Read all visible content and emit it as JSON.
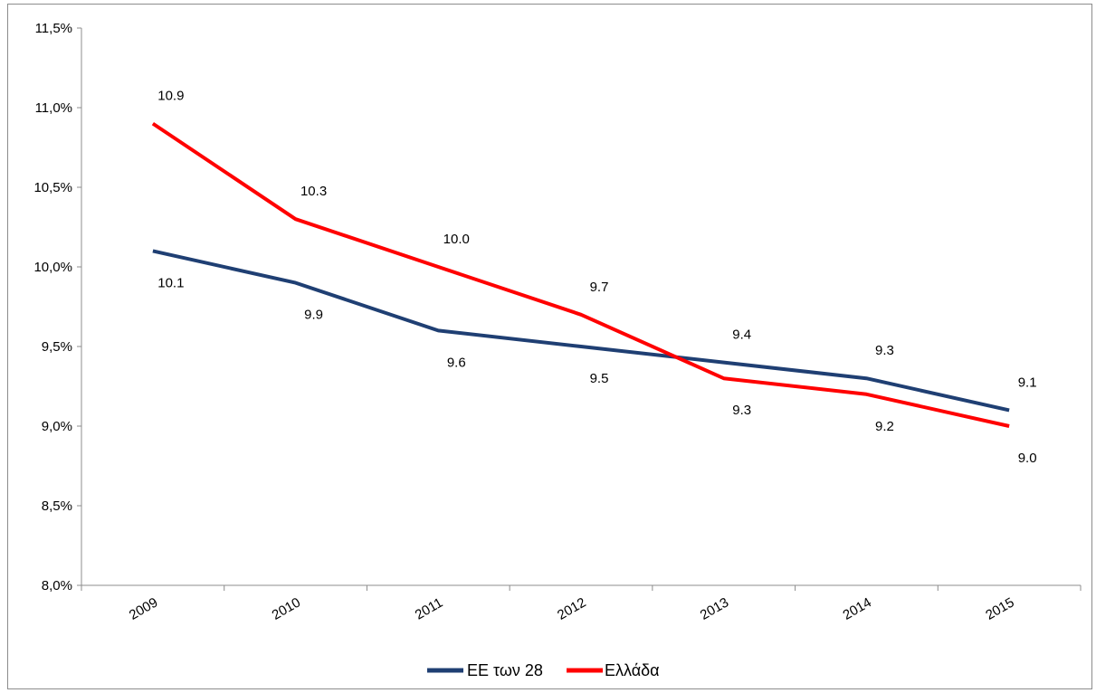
{
  "chart_data": {
    "type": "line",
    "categories": [
      "2009",
      "2010",
      "2011",
      "2012",
      "2013",
      "2014",
      "2015"
    ],
    "series": [
      {
        "name": "ΕΕ των 28",
        "color": "#1f3f73",
        "values": [
          10.1,
          9.9,
          9.6,
          9.5,
          9.4,
          9.3,
          9.1
        ],
        "data_labels": [
          "10.1",
          "9.9",
          "9.6",
          "9.5",
          "9.4",
          "9.3",
          "9.1"
        ]
      },
      {
        "name": "Ελλάδα",
        "color": "#ff0000",
        "values": [
          10.9,
          10.3,
          10.0,
          9.7,
          9.3,
          9.2,
          9.0
        ],
        "data_labels": [
          "10.9",
          "10.3",
          "10.0",
          "9.7",
          "9.3",
          "9.2",
          "9.0"
        ]
      }
    ],
    "ylim": [
      8.0,
      11.5
    ],
    "yticks": [
      8.0,
      8.5,
      9.0,
      9.5,
      10.0,
      10.5,
      11.0,
      11.5
    ],
    "ytick_labels": [
      "8,0%",
      "8,5%",
      "9,0%",
      "9,5%",
      "10,0%",
      "10,5%",
      "11,0%",
      "11,5%"
    ],
    "title": "",
    "xlabel": "",
    "ylabel": "",
    "grid": false,
    "legend_position": "bottom"
  }
}
